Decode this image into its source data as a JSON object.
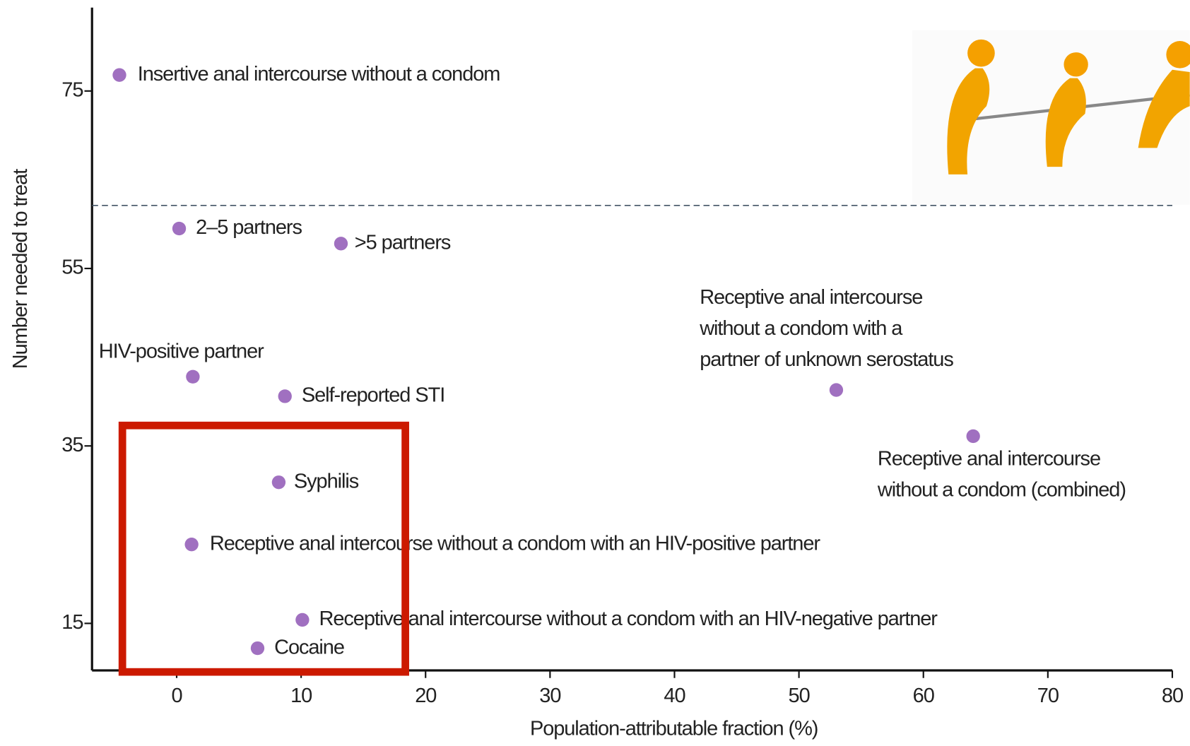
{
  "chart_data": {
    "type": "scatter",
    "x_label": "Population-attributable fraction (%)",
    "y_label": "Number needed to treat",
    "x": [
      -4.6,
      0.2,
      13.2,
      1.3,
      8.7,
      53,
      64,
      8.2,
      1.2,
      10.1,
      6.5
    ],
    "values": [
      76.8,
      59.5,
      57.8,
      42.8,
      40.6,
      41.3,
      36.1,
      30.9,
      23.9,
      15.4,
      12.2
    ],
    "labels": [
      "Insertive anal intercourse without a condom",
      "2–5 partners",
      ">5 partners",
      "HIV-positive partner",
      "Self-reported STI",
      [
        "Receptive anal intercourse",
        "without a condom with a",
        "partner of unknown serostatus"
      ],
      [
        "Receptive anal intercourse",
        "without a condom (combined)"
      ],
      "Syphilis",
      "Receptive anal intercourse without a condom with an HIV-positive partner",
      "Receptive anal intercourse without a condom with an HIV-negative partner",
      "Cocaine"
    ],
    "color": "#a070c0",
    "xlim": [
      -6.8,
      80
    ],
    "ylim": [
      9.7,
      84.4
    ],
    "xticks": [
      0,
      10,
      20,
      30,
      40,
      50,
      60,
      70,
      80
    ],
    "yticks": [
      15,
      35,
      55,
      75
    ],
    "reference_line": 62.1
  }
}
